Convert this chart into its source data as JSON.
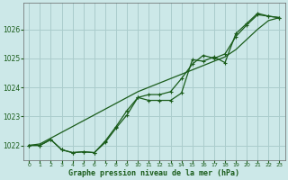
{
  "title": "Graphe pression niveau de la mer (hPa)",
  "bg_color": "#cce8e8",
  "grid_color": "#aacccc",
  "line_color": "#1a5c1a",
  "marker_color": "#1a5c1a",
  "xlim": [
    -0.5,
    23.5
  ],
  "ylim": [
    1021.5,
    1026.9
  ],
  "yticks": [
    1022,
    1023,
    1024,
    1025,
    1026
  ],
  "xtick_labels": [
    "0",
    "1",
    "2",
    "3",
    "4",
    "5",
    "6",
    "7",
    "8",
    "9",
    "10",
    "11",
    "12",
    "13",
    "14",
    "15",
    "16",
    "17",
    "18",
    "19",
    "20",
    "21",
    "22",
    "23"
  ],
  "series1": [
    1022.0,
    1022.0,
    1022.2,
    1021.85,
    1021.75,
    1021.78,
    1021.75,
    1022.1,
    1022.6,
    1023.05,
    1023.65,
    1023.55,
    1023.55,
    1023.55,
    1023.8,
    1024.95,
    1024.9,
    1025.05,
    1024.85,
    1025.85,
    1026.2,
    1026.55,
    1026.45,
    1026.4
  ],
  "series2": [
    1022.0,
    1022.0,
    1022.2,
    1021.85,
    1021.75,
    1021.78,
    1021.75,
    1022.15,
    1022.65,
    1023.2,
    1023.65,
    1023.75,
    1023.75,
    1023.85,
    1024.3,
    1024.8,
    1025.1,
    1025.0,
    1025.15,
    1025.75,
    1026.15,
    1026.5,
    1026.45,
    1026.4
  ],
  "series3": [
    1022.0,
    1022.05,
    1022.25,
    1022.45,
    1022.65,
    1022.85,
    1023.05,
    1023.25,
    1023.45,
    1023.65,
    1023.85,
    1024.0,
    1024.15,
    1024.3,
    1024.45,
    1024.6,
    1024.75,
    1024.9,
    1025.05,
    1025.3,
    1025.65,
    1026.0,
    1026.3,
    1026.4
  ]
}
